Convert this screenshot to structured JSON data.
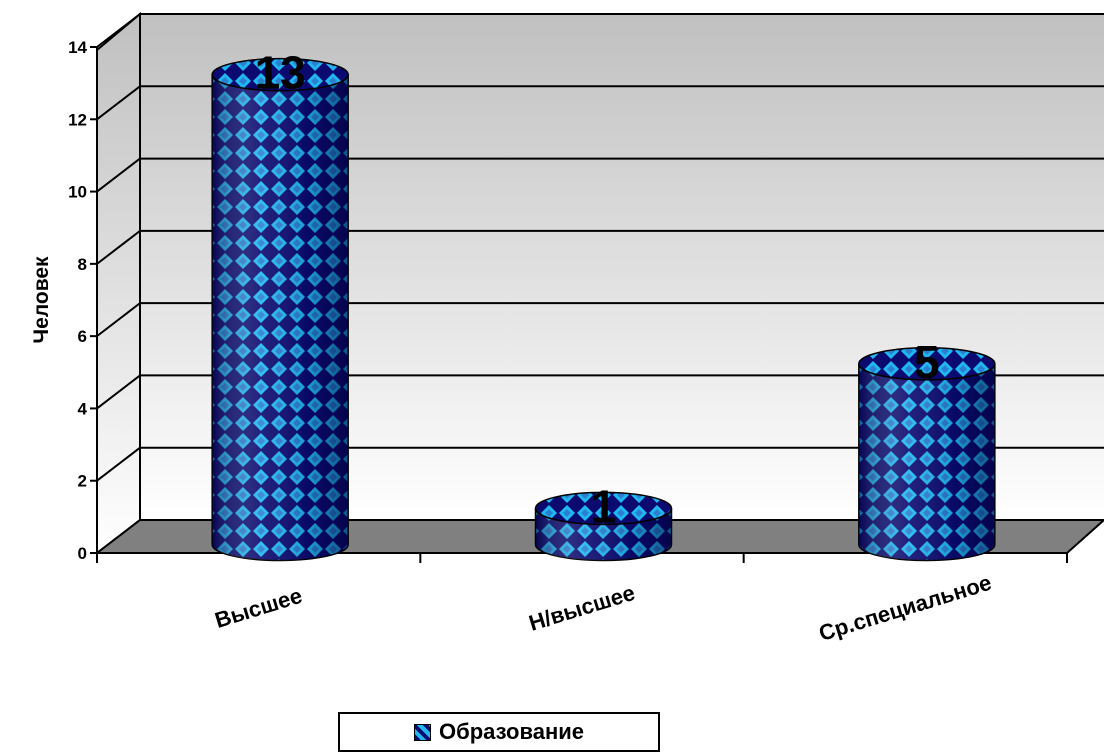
{
  "chart_data": {
    "type": "bar",
    "style": "3d-cylinder",
    "categories": [
      "Высшее",
      "Н/высшее",
      "Ср.специальное"
    ],
    "series": [
      {
        "name": "Образование",
        "values": [
          13,
          1,
          5
        ]
      }
    ],
    "data_labels": [
      "13",
      "1",
      "5"
    ],
    "title": "",
    "xlabel": "",
    "ylabel": "Человек",
    "ylim": [
      0,
      14
    ],
    "yticks": [
      "0",
      "2",
      "4",
      "6",
      "8",
      "10",
      "12",
      "14"
    ],
    "grid": true,
    "legend": "bottom-center",
    "colors": {
      "bar_dark": "#0a0a70",
      "bar_light": "#1fb8f0",
      "floor": "#808080",
      "wall_top": "#c0c0c0",
      "wall_bottom": "#ffffff"
    }
  }
}
